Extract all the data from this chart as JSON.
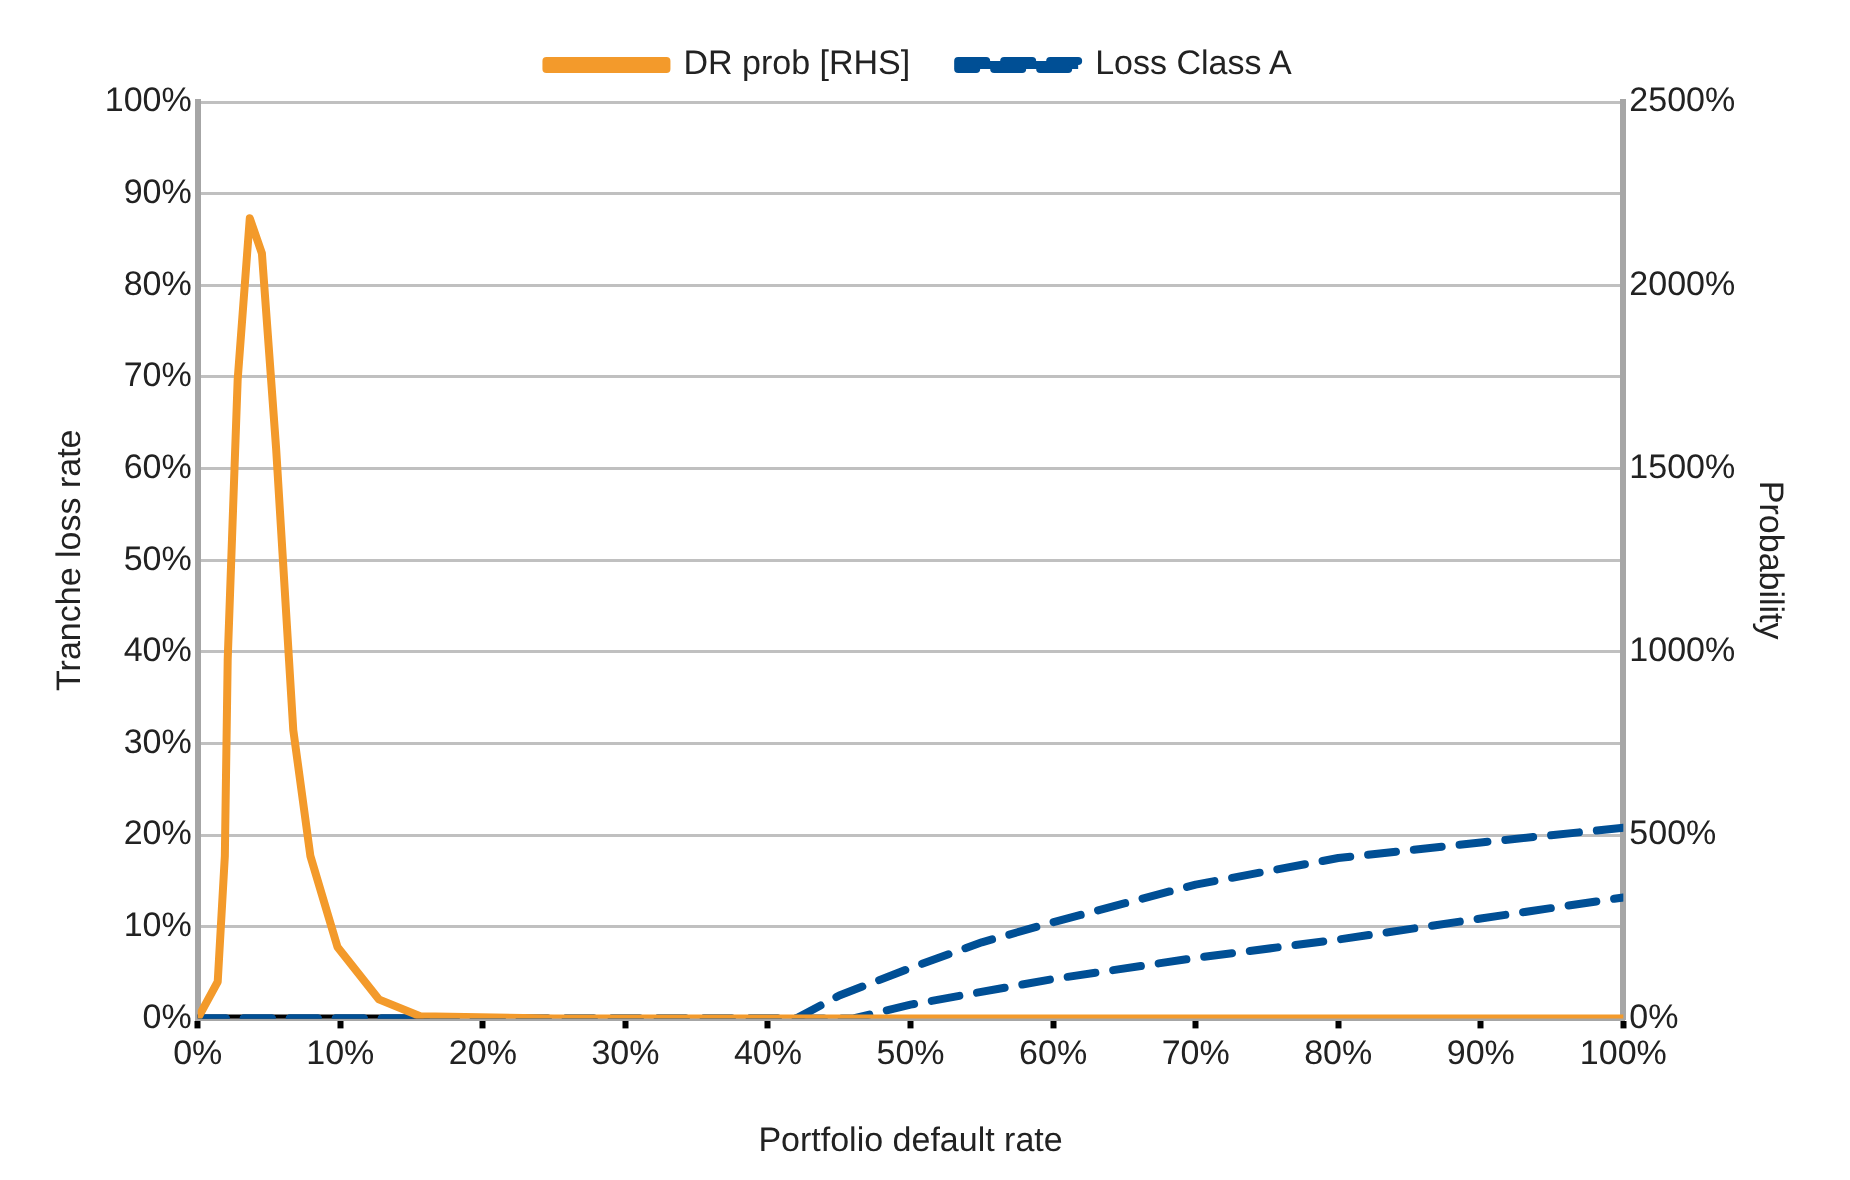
{
  "chart_data": {
    "type": "line",
    "xlabel": "Portfolio default rate",
    "ylabel": "Tranche loss rate",
    "y2label": "Probability",
    "xlim": [
      0,
      100
    ],
    "xticks": [
      {
        "value": 0,
        "label": "0%"
      },
      {
        "value": 10,
        "label": "10%"
      },
      {
        "value": 20,
        "label": "20%"
      },
      {
        "value": 30,
        "label": "30%"
      },
      {
        "value": 40,
        "label": "40%"
      },
      {
        "value": 50,
        "label": "50%"
      },
      {
        "value": 60,
        "label": "60%"
      },
      {
        "value": 70,
        "label": "70%"
      },
      {
        "value": 80,
        "label": "80%"
      },
      {
        "value": 90,
        "label": "90%"
      },
      {
        "value": 100,
        "label": "100%"
      }
    ],
    "ylim": [
      0,
      100
    ],
    "yticks": [
      {
        "value": 0,
        "label": "0%"
      },
      {
        "value": 10,
        "label": "10%"
      },
      {
        "value": 20,
        "label": "20%"
      },
      {
        "value": 30,
        "label": "30%"
      },
      {
        "value": 40,
        "label": "40%"
      },
      {
        "value": 50,
        "label": "50%"
      },
      {
        "value": 60,
        "label": "60%"
      },
      {
        "value": 70,
        "label": "70%"
      },
      {
        "value": 80,
        "label": "80%"
      },
      {
        "value": 90,
        "label": "90%"
      },
      {
        "value": 100,
        "label": "100%"
      }
    ],
    "y2lim": [
      0,
      2500
    ],
    "y2ticks": [
      {
        "value": 0,
        "label": "0%"
      },
      {
        "value": 500,
        "label": "500%"
      },
      {
        "value": 1000,
        "label": "1000%"
      },
      {
        "value": 1500,
        "label": "1500%"
      },
      {
        "value": 2000,
        "label": "2000%"
      },
      {
        "value": 2500,
        "label": "2500%"
      }
    ],
    "grid": "y",
    "legend": "top",
    "marker": "none",
    "series": [
      {
        "color": "#000000",
        "line_style": "solid",
        "x": [
          0,
          16
        ],
        "values": [
          0,
          0
        ]
      },
      {
        "name": "Loss Class A",
        "color": "#004f95",
        "line_style": "dashed",
        "x": [
          0,
          42,
          45,
          50,
          55,
          60,
          70,
          80,
          90,
          100
        ],
        "values": [
          0,
          0,
          2.5,
          5.5,
          8.3,
          10.5,
          14.6,
          17.5,
          19.2,
          20.8
        ]
      },
      {
        "color": "#004f95",
        "line_style": "dashed",
        "x": [
          0,
          46,
          50,
          60,
          70,
          80,
          90,
          100
        ],
        "values": [
          0,
          0,
          1.5,
          4.3,
          6.6,
          8.6,
          10.9,
          13.2
        ]
      },
      {
        "name": "DR prob [RHS]",
        "color": "#f39a2b",
        "line_style": "solid",
        "axis": "y2",
        "x": [
          0,
          1.4,
          1.9,
          2.1,
          2.8,
          3.65,
          4.5,
          5.5,
          6.7,
          7.9,
          9.8,
          12.7,
          15.6,
          25,
          100
        ],
        "values": [
          0,
          100,
          443,
          979,
          1743,
          2183,
          2087,
          1553,
          787,
          443,
          195,
          52,
          6,
          0,
          0
        ]
      }
    ]
  }
}
